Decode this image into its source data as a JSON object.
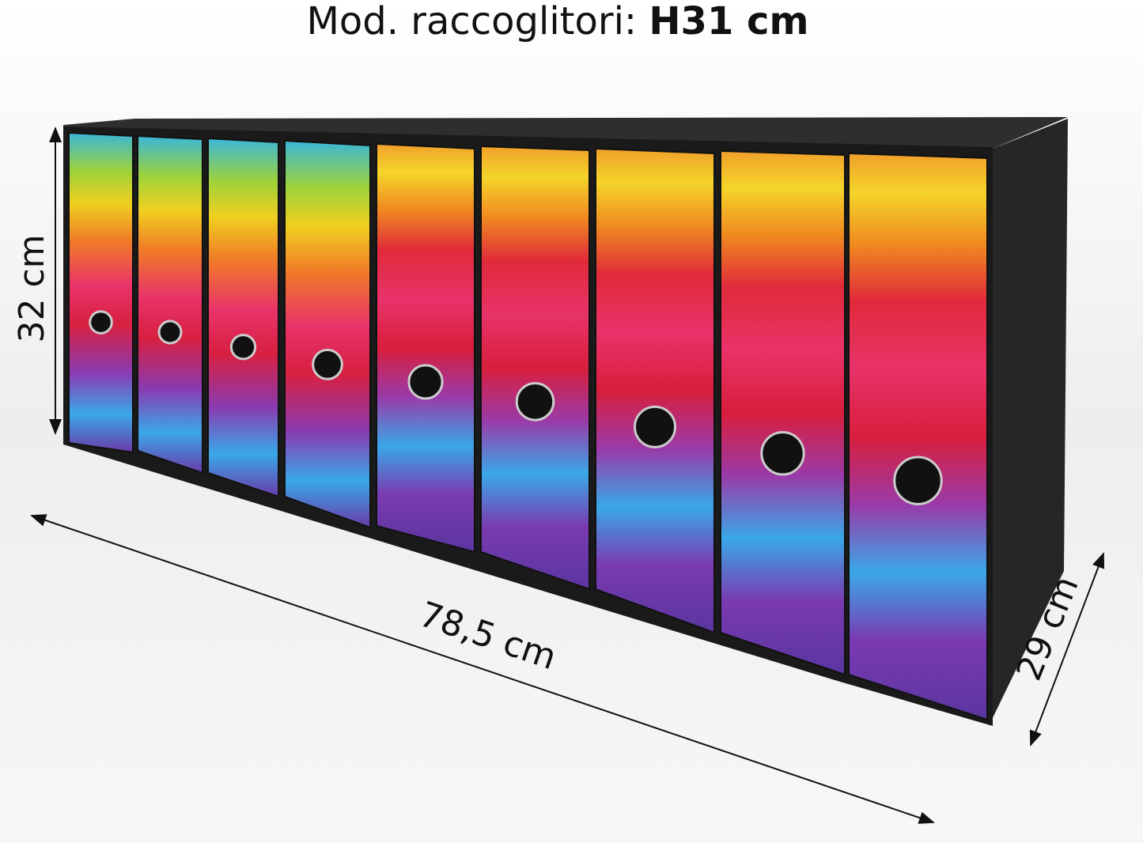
{
  "title": {
    "label": "Mod. raccoglitori:",
    "value": "H31 cm"
  },
  "dimensions": {
    "height": "32 cm",
    "width": "78,5 cm",
    "depth": "29 cm"
  }
}
